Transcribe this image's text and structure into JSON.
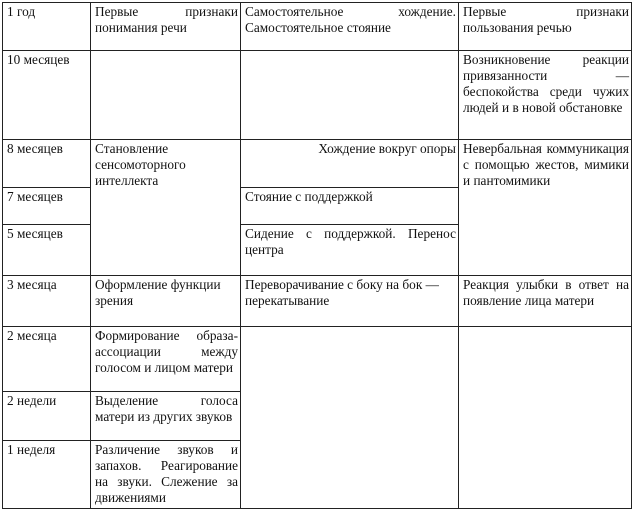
{
  "rows": [
    {
      "age": "1 год",
      "cognition": "Первые признаки понимания речи",
      "motor": "Самостоятельное хождение. Самостоятельное стояние",
      "social": "Первые признаки пользования речью"
    },
    {
      "age": "10 месяцев",
      "cognition": "",
      "motor": "",
      "social": "Возникновение реакции привязанности — беспокойства среди чужих людей и в новой обстановке"
    },
    {
      "age": "8 месяцев",
      "cognition": "Становление сенсомоторного интеллекта",
      "motor": "Хождение вокруг опоры",
      "social": "Невербальная коммуникация с помощью жестов, мимики и пантомимики"
    },
    {
      "age": "7 месяцев",
      "motor": "Стояние с поддержкой"
    },
    {
      "age": "5 месяцев",
      "motor": "Сидение с поддержкой. Перенос центра"
    },
    {
      "age": "3 месяца",
      "cognition": "Оформление функции зрения",
      "motor": "Переворачивание с боку на бок — перекатывание",
      "social": "Реакция улыбки в ответ на появление лица матери"
    },
    {
      "age": "2 месяца",
      "cognition": "Формирование образа-ассоциации между голосом и лицом матери",
      "motor": "",
      "social": ""
    },
    {
      "age": "2 недели",
      "cognition": "Выделение голоса матери из других звуков"
    },
    {
      "age": "1 неделя",
      "cognition": "Различение звуков и запахов. Реагирование на звуки. Слежение за движениями"
    }
  ]
}
